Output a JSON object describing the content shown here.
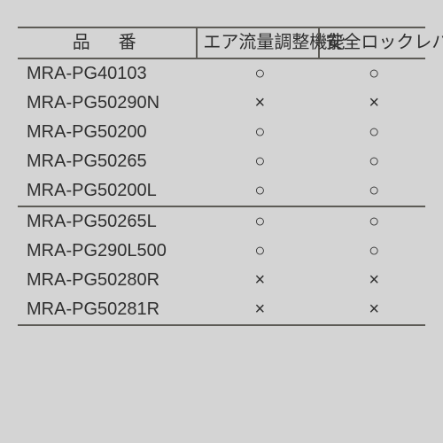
{
  "table": {
    "headers": [
      "品　番",
      "エア流量調整機能",
      "安全ロックレバー"
    ],
    "col_widths_pct": [
      44,
      30,
      26
    ],
    "rows": [
      {
        "model": "MRA-PG40103",
        "air": "○",
        "lock": "○",
        "section_start": false
      },
      {
        "model": "MRA-PG50290N",
        "air": "×",
        "lock": "×",
        "section_start": false
      },
      {
        "model": "MRA-PG50200",
        "air": "○",
        "lock": "○",
        "section_start": false
      },
      {
        "model": "MRA-PG50265",
        "air": "○",
        "lock": "○",
        "section_start": false
      },
      {
        "model": "MRA-PG50200L",
        "air": "○",
        "lock": "○",
        "section_start": false
      },
      {
        "model": "MRA-PG50265L",
        "air": "○",
        "lock": "○",
        "section_start": true
      },
      {
        "model": "MRA-PG290L500",
        "air": "○",
        "lock": "○",
        "section_start": false
      },
      {
        "model": "MRA-PG50280R",
        "air": "×",
        "lock": "×",
        "section_start": false
      },
      {
        "model": "MRA-PG50281R",
        "air": "×",
        "lock": "×",
        "section_start": false
      }
    ],
    "colors": {
      "background": "#d4d4d4",
      "border": "#5d5b56",
      "text": "#2f2f2f"
    },
    "font_size_pt": 15
  }
}
